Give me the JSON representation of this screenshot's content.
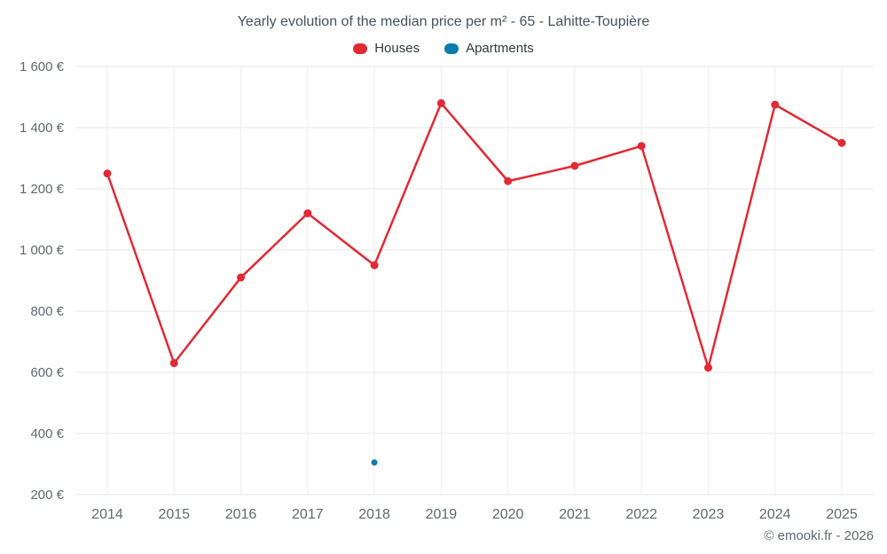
{
  "page": {
    "footer": "© emooki.fr - 2026"
  },
  "chart_data": {
    "type": "line",
    "title": "Yearly evolution of the median price per m² - 65 - Lahitte-Toupière",
    "categories": [
      "2014",
      "2015",
      "2016",
      "2017",
      "2018",
      "2019",
      "2020",
      "2021",
      "2022",
      "2023",
      "2024",
      "2025"
    ],
    "series": [
      {
        "name": "Houses",
        "color": "#e22a35",
        "marker_radius": 4.5,
        "values": [
          1250,
          630,
          910,
          1120,
          950,
          1480,
          1225,
          1275,
          1340,
          615,
          1475,
          1350
        ]
      },
      {
        "name": "Apartments",
        "color": "#0c7bac",
        "marker_radius": 3.5,
        "values": [
          null,
          null,
          null,
          null,
          305,
          null,
          null,
          null,
          null,
          null,
          null,
          null
        ]
      }
    ],
    "ylim": [
      200,
      1600
    ],
    "ytick_step": 200,
    "ytick_labels": [
      "200 €",
      "400 €",
      "600 €",
      "800 €",
      "1 000 €",
      "1 200 €",
      "1 400 €",
      "1 600 €"
    ],
    "grid": true,
    "legend_position": "top",
    "xlabel": "",
    "ylabel": ""
  }
}
